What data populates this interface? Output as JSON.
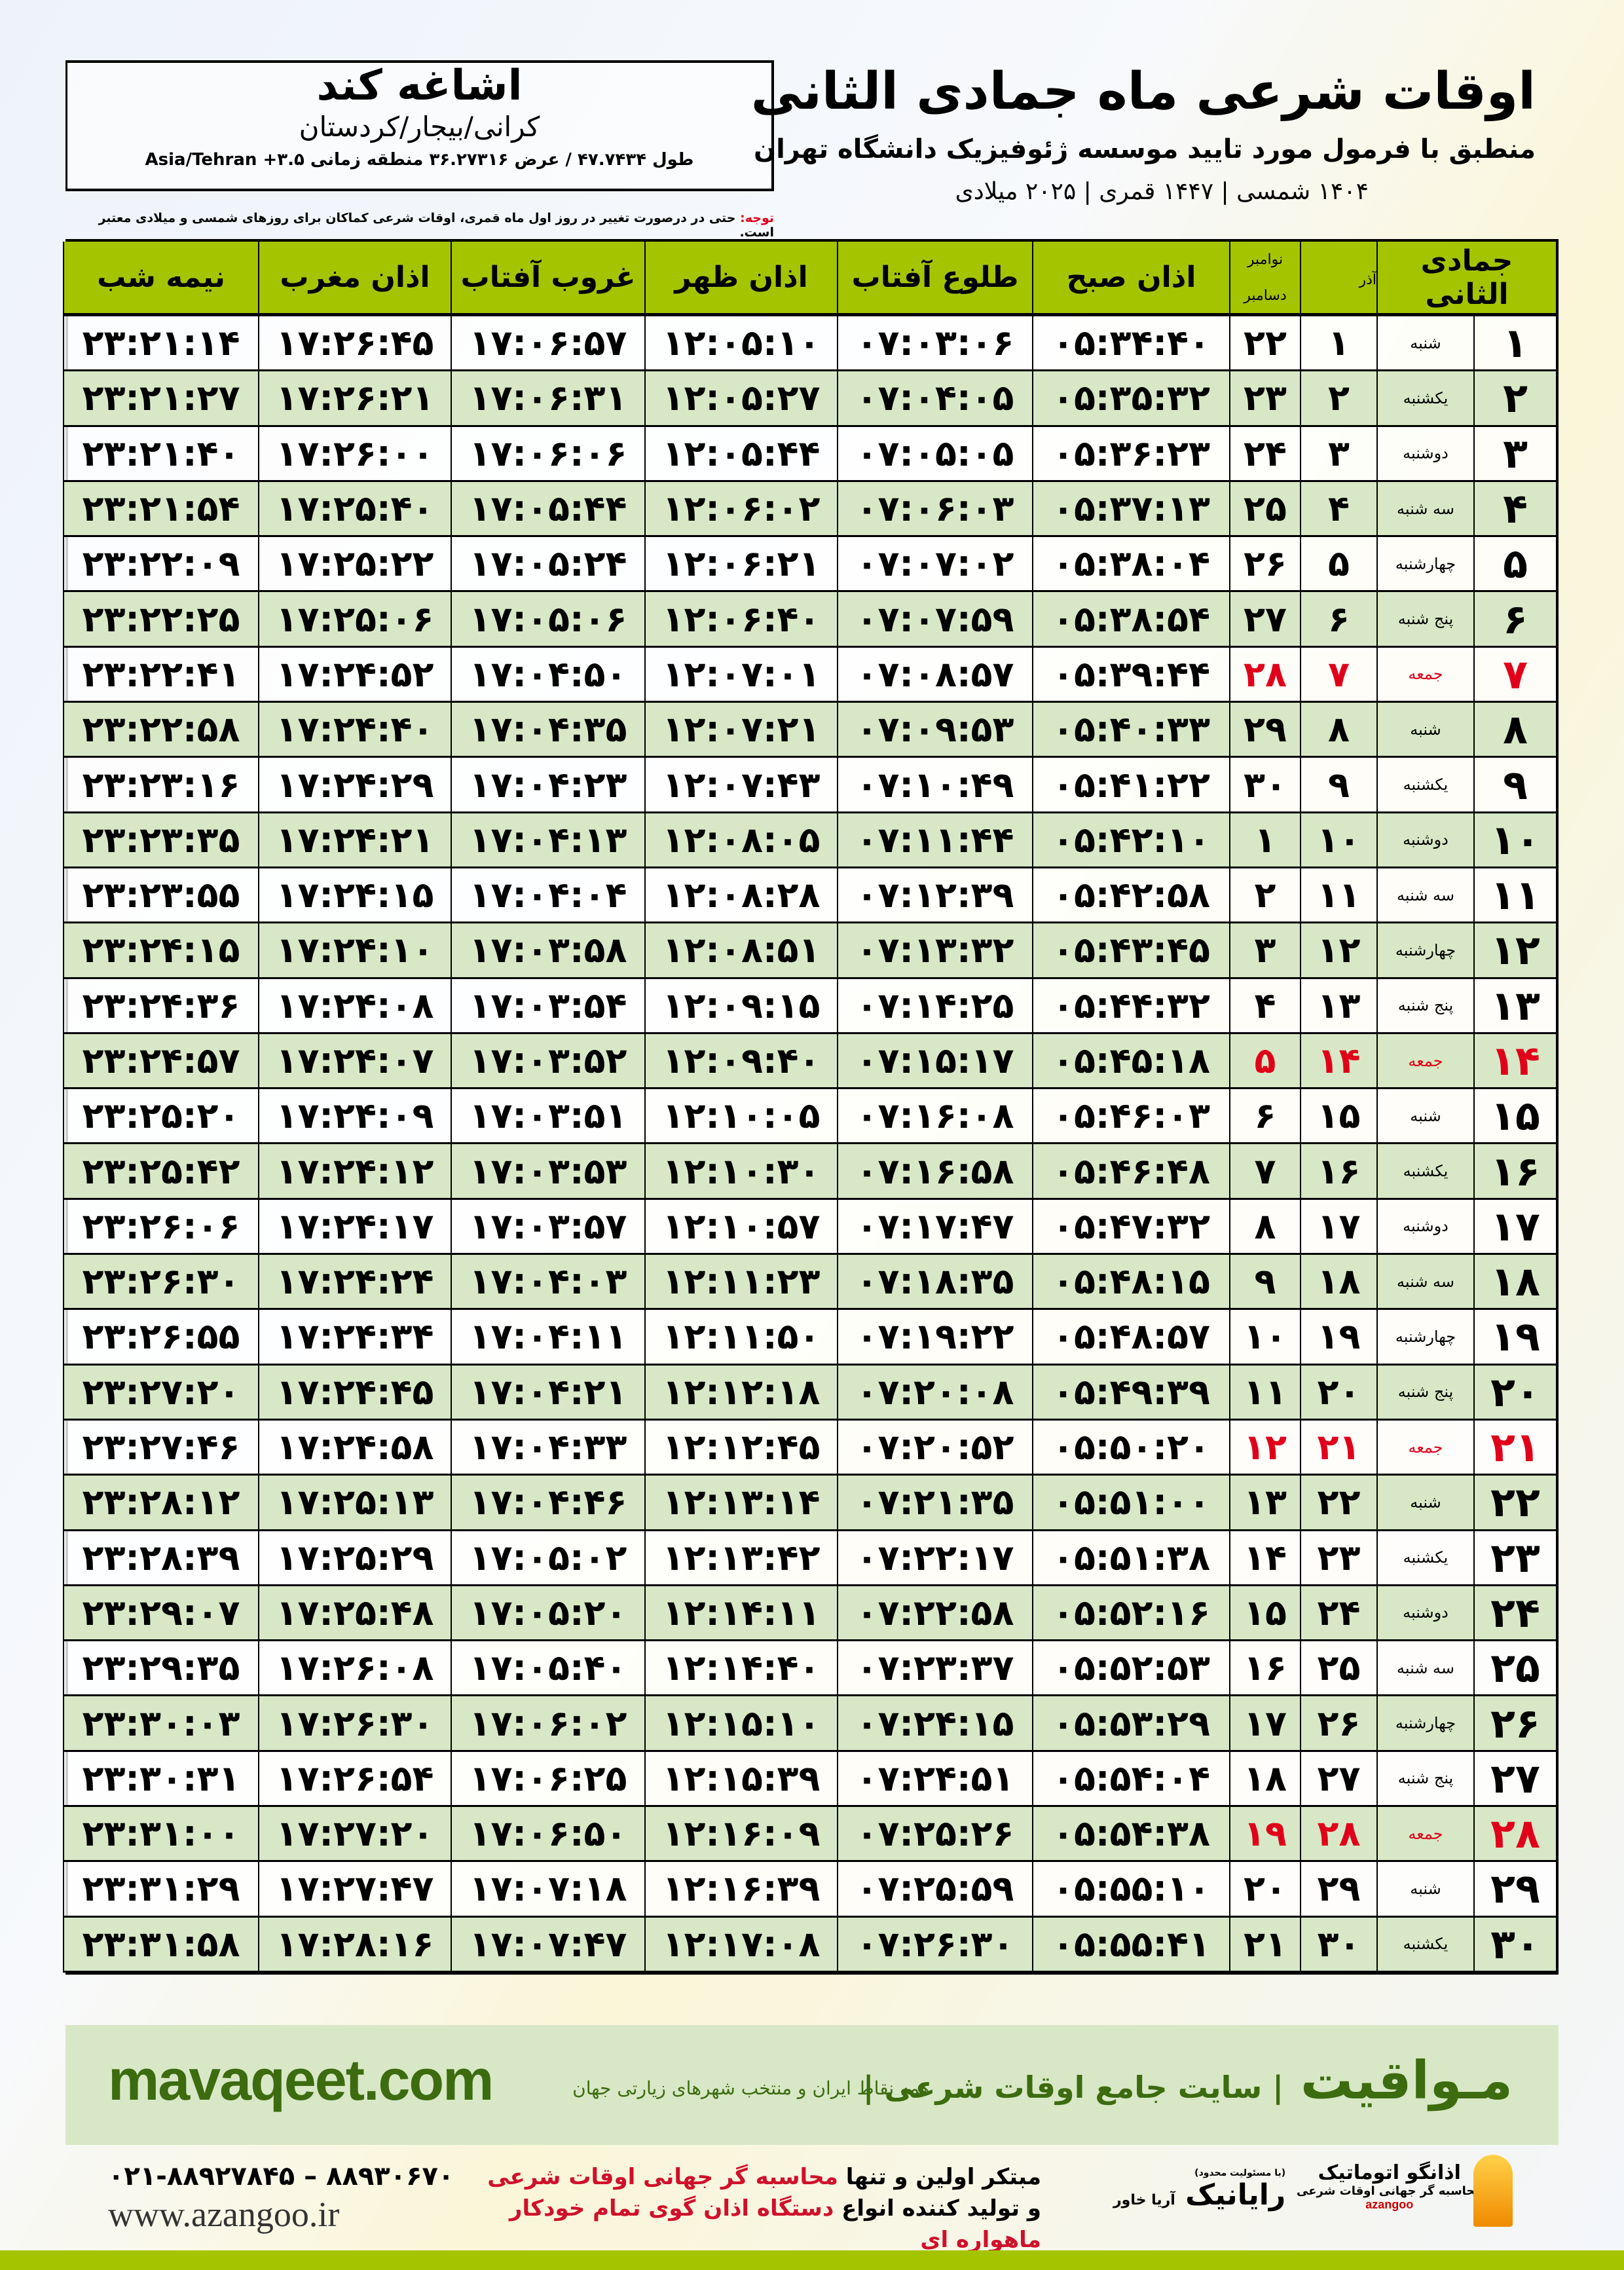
{
  "header": {
    "city": "اشاغه کند",
    "region": "کرانی/بیجار/کردستان",
    "coords": "طول ۴۷.۷۴۳۴ / عرض ۳۶.۲۷۳۱۶ منطقه زمانی ۳.۵+ Asia/Tehran",
    "title": "اوقات شرعی ماه جمادی الثانی",
    "subtitle": "منطبق با فرمول مورد تایید موسسه ژئوفیزیک دانشگاه تهران",
    "years": "۱۴۰۴ شمسی | ۱۴۴۷ قمری | ۲۰۲۵ میلادی",
    "note_label": "توجه:",
    "note_text": " حتی در درصورت تغییر در روز اول ماه قمری، اوقات شرعی کماکان برای روزهای شمسی و میلادی معتبر است."
  },
  "colors": {
    "header_green": "#a5c400",
    "row_alt": "#d8e8c6",
    "friday_red": "#e0001a",
    "brand_green": "#3d6b10"
  },
  "table": {
    "columns": [
      "جمادی الثانی",
      "",
      "آذر",
      "نوامبر|دسامبر",
      "اذان صبح",
      "طلوع آفتاب",
      "اذان ظهر",
      "غروب آفتاب",
      "اذان مغرب",
      "نیمه شب"
    ],
    "friday": "جمعه",
    "rows": [
      [
        "۱",
        "شنبه",
        "۱",
        "۲۲",
        "۰۵:۳۴:۴۰",
        "۰۷:۰۳:۰۶",
        "۱۲:۰۵:۱۰",
        "۱۷:۰۶:۵۷",
        "۱۷:۲۶:۴۵",
        "۲۳:۲۱:۱۴"
      ],
      [
        "۲",
        "یکشنبه",
        "۲",
        "۲۳",
        "۰۵:۳۵:۳۲",
        "۰۷:۰۴:۰۵",
        "۱۲:۰۵:۲۷",
        "۱۷:۰۶:۳۱",
        "۱۷:۲۶:۲۱",
        "۲۳:۲۱:۲۷"
      ],
      [
        "۳",
        "دوشنبه",
        "۳",
        "۲۴",
        "۰۵:۳۶:۲۳",
        "۰۷:۰۵:۰۵",
        "۱۲:۰۵:۴۴",
        "۱۷:۰۶:۰۶",
        "۱۷:۲۶:۰۰",
        "۲۳:۲۱:۴۰"
      ],
      [
        "۴",
        "سه شنبه",
        "۴",
        "۲۵",
        "۰۵:۳۷:۱۳",
        "۰۷:۰۶:۰۳",
        "۱۲:۰۶:۰۲",
        "۱۷:۰۵:۴۴",
        "۱۷:۲۵:۴۰",
        "۲۳:۲۱:۵۴"
      ],
      [
        "۵",
        "چهارشنبه",
        "۵",
        "۲۶",
        "۰۵:۳۸:۰۴",
        "۰۷:۰۷:۰۲",
        "۱۲:۰۶:۲۱",
        "۱۷:۰۵:۲۴",
        "۱۷:۲۵:۲۲",
        "۲۳:۲۲:۰۹"
      ],
      [
        "۶",
        "پنج شنبه",
        "۶",
        "۲۷",
        "۰۵:۳۸:۵۴",
        "۰۷:۰۷:۵۹",
        "۱۲:۰۶:۴۰",
        "۱۷:۰۵:۰۶",
        "۱۷:۲۵:۰۶",
        "۲۳:۲۲:۲۵"
      ],
      [
        "۷",
        "جمعه",
        "۷",
        "۲۸",
        "۰۵:۳۹:۴۴",
        "۰۷:۰۸:۵۷",
        "۱۲:۰۷:۰۱",
        "۱۷:۰۴:۵۰",
        "۱۷:۲۴:۵۲",
        "۲۳:۲۲:۴۱"
      ],
      [
        "۸",
        "شنبه",
        "۸",
        "۲۹",
        "۰۵:۴۰:۳۳",
        "۰۷:۰۹:۵۳",
        "۱۲:۰۷:۲۱",
        "۱۷:۰۴:۳۵",
        "۱۷:۲۴:۴۰",
        "۲۳:۲۲:۵۸"
      ],
      [
        "۹",
        "یکشنبه",
        "۹",
        "۳۰",
        "۰۵:۴۱:۲۲",
        "۰۷:۱۰:۴۹",
        "۱۲:۰۷:۴۳",
        "۱۷:۰۴:۲۳",
        "۱۷:۲۴:۲۹",
        "۲۳:۲۳:۱۶"
      ],
      [
        "۱۰",
        "دوشنبه",
        "۱۰",
        "۱",
        "۰۵:۴۲:۱۰",
        "۰۷:۱۱:۴۴",
        "۱۲:۰۸:۰۵",
        "۱۷:۰۴:۱۳",
        "۱۷:۲۴:۲۱",
        "۲۳:۲۳:۳۵"
      ],
      [
        "۱۱",
        "سه شنبه",
        "۱۱",
        "۲",
        "۰۵:۴۲:۵۸",
        "۰۷:۱۲:۳۹",
        "۱۲:۰۸:۲۸",
        "۱۷:۰۴:۰۴",
        "۱۷:۲۴:۱۵",
        "۲۳:۲۳:۵۵"
      ],
      [
        "۱۲",
        "چهارشنبه",
        "۱۲",
        "۳",
        "۰۵:۴۳:۴۵",
        "۰۷:۱۳:۳۲",
        "۱۲:۰۸:۵۱",
        "۱۷:۰۳:۵۸",
        "۱۷:۲۴:۱۰",
        "۲۳:۲۴:۱۵"
      ],
      [
        "۱۳",
        "پنج شنبه",
        "۱۳",
        "۴",
        "۰۵:۴۴:۳۲",
        "۰۷:۱۴:۲۵",
        "۱۲:۰۹:۱۵",
        "۱۷:۰۳:۵۴",
        "۱۷:۲۴:۰۸",
        "۲۳:۲۴:۳۶"
      ],
      [
        "۱۴",
        "جمعه",
        "۱۴",
        "۵",
        "۰۵:۴۵:۱۸",
        "۰۷:۱۵:۱۷",
        "۱۲:۰۹:۴۰",
        "۱۷:۰۳:۵۲",
        "۱۷:۲۴:۰۷",
        "۲۳:۲۴:۵۷"
      ],
      [
        "۱۵",
        "شنبه",
        "۱۵",
        "۶",
        "۰۵:۴۶:۰۳",
        "۰۷:۱۶:۰۸",
        "۱۲:۱۰:۰۵",
        "۱۷:۰۳:۵۱",
        "۱۷:۲۴:۰۹",
        "۲۳:۲۵:۲۰"
      ],
      [
        "۱۶",
        "یکشنبه",
        "۱۶",
        "۷",
        "۰۵:۴۶:۴۸",
        "۰۷:۱۶:۵۸",
        "۱۲:۱۰:۳۰",
        "۱۷:۰۳:۵۳",
        "۱۷:۲۴:۱۲",
        "۲۳:۲۵:۴۲"
      ],
      [
        "۱۷",
        "دوشنبه",
        "۱۷",
        "۸",
        "۰۵:۴۷:۳۲",
        "۰۷:۱۷:۴۷",
        "۱۲:۱۰:۵۷",
        "۱۷:۰۳:۵۷",
        "۱۷:۲۴:۱۷",
        "۲۳:۲۶:۰۶"
      ],
      [
        "۱۸",
        "سه شنبه",
        "۱۸",
        "۹",
        "۰۵:۴۸:۱۵",
        "۰۷:۱۸:۳۵",
        "۱۲:۱۱:۲۳",
        "۱۷:۰۴:۰۳",
        "۱۷:۲۴:۲۴",
        "۲۳:۲۶:۳۰"
      ],
      [
        "۱۹",
        "چهارشنبه",
        "۱۹",
        "۱۰",
        "۰۵:۴۸:۵۷",
        "۰۷:۱۹:۲۲",
        "۱۲:۱۱:۵۰",
        "۱۷:۰۴:۱۱",
        "۱۷:۲۴:۳۴",
        "۲۳:۲۶:۵۵"
      ],
      [
        "۲۰",
        "پنج شنبه",
        "۲۰",
        "۱۱",
        "۰۵:۴۹:۳۹",
        "۰۷:۲۰:۰۸",
        "۱۲:۱۲:۱۸",
        "۱۷:۰۴:۲۱",
        "۱۷:۲۴:۴۵",
        "۲۳:۲۷:۲۰"
      ],
      [
        "۲۱",
        "جمعه",
        "۲۱",
        "۱۲",
        "۰۵:۵۰:۲۰",
        "۰۷:۲۰:۵۲",
        "۱۲:۱۲:۴۵",
        "۱۷:۰۴:۳۳",
        "۱۷:۲۴:۵۸",
        "۲۳:۲۷:۴۶"
      ],
      [
        "۲۲",
        "شنبه",
        "۲۲",
        "۱۳",
        "۰۵:۵۱:۰۰",
        "۰۷:۲۱:۳۵",
        "۱۲:۱۳:۱۴",
        "۱۷:۰۴:۴۶",
        "۱۷:۲۵:۱۳",
        "۲۳:۲۸:۱۲"
      ],
      [
        "۲۳",
        "یکشنبه",
        "۲۳",
        "۱۴",
        "۰۵:۵۱:۳۸",
        "۰۷:۲۲:۱۷",
        "۱۲:۱۳:۴۲",
        "۱۷:۰۵:۰۲",
        "۱۷:۲۵:۲۹",
        "۲۳:۲۸:۳۹"
      ],
      [
        "۲۴",
        "دوشنبه",
        "۲۴",
        "۱۵",
        "۰۵:۵۲:۱۶",
        "۰۷:۲۲:۵۸",
        "۱۲:۱۴:۱۱",
        "۱۷:۰۵:۲۰",
        "۱۷:۲۵:۴۸",
        "۲۳:۲۹:۰۷"
      ],
      [
        "۲۵",
        "سه شنبه",
        "۲۵",
        "۱۶",
        "۰۵:۵۲:۵۳",
        "۰۷:۲۳:۳۷",
        "۱۲:۱۴:۴۰",
        "۱۷:۰۵:۴۰",
        "۱۷:۲۶:۰۸",
        "۲۳:۲۹:۳۵"
      ],
      [
        "۲۶",
        "چهارشنبه",
        "۲۶",
        "۱۷",
        "۰۵:۵۳:۲۹",
        "۰۷:۲۴:۱۵",
        "۱۲:۱۵:۱۰",
        "۱۷:۰۶:۰۲",
        "۱۷:۲۶:۳۰",
        "۲۳:۳۰:۰۳"
      ],
      [
        "۲۷",
        "پنج شنبه",
        "۲۷",
        "۱۸",
        "۰۵:۵۴:۰۴",
        "۰۷:۲۴:۵۱",
        "۱۲:۱۵:۳۹",
        "۱۷:۰۶:۲۵",
        "۱۷:۲۶:۵۴",
        "۲۳:۳۰:۳۱"
      ],
      [
        "۲۸",
        "جمعه",
        "۲۸",
        "۱۹",
        "۰۵:۵۴:۳۸",
        "۰۷:۲۵:۲۶",
        "۱۲:۱۶:۰۹",
        "۱۷:۰۶:۵۰",
        "۱۷:۲۷:۲۰",
        "۲۳:۳۱:۰۰"
      ],
      [
        "۲۹",
        "شنبه",
        "۲۹",
        "۲۰",
        "۰۵:۵۵:۱۰",
        "۰۷:۲۵:۵۹",
        "۱۲:۱۶:۳۹",
        "۱۷:۰۷:۱۸",
        "۱۷:۲۷:۴۷",
        "۲۳:۳۱:۲۹"
      ],
      [
        "۳۰",
        "یکشنبه",
        "۳۰",
        "۲۱",
        "۰۵:۵۵:۴۱",
        "۰۷:۲۶:۳۰",
        "۱۲:۱۷:۰۸",
        "۱۷:۰۷:۴۷",
        "۱۷:۲۸:۱۶",
        "۲۳:۳۱:۵۸"
      ]
    ]
  },
  "footer": {
    "brand": "مـواقیت",
    "slogan": "| سایت جامع اوقات شرعی |",
    "slogan2": "همه نقاط ایران و منتخب شهرهای زیارتی جهان",
    "site": "mavaqeet.com",
    "phone": "۰۲۱-۸۸۹۲۷۸۴۵ – ۸۸۹۳۰۶۷۰",
    "www": "www.azangoo.ir",
    "promo1a": "مبتکر اولین و تنها ",
    "promo1b": "محاسبه گر جهانی اوقات شرعی",
    "promo2a": "و تولید کننده انواع ",
    "promo2b": "دستگاه اذان گوی تمام خودکار ماهواره ای",
    "rayanik": "رایانیک",
    "rayanik_sub": "آریا خاور",
    "rayanik_tag": "(با مسئولیت محدود)",
    "azangoo": "اذانگو اتوماتیک",
    "azangoo_en": "azangoo",
    "azangoo_sub": "محاسبه گر جهانی اوقات شرعی"
  }
}
